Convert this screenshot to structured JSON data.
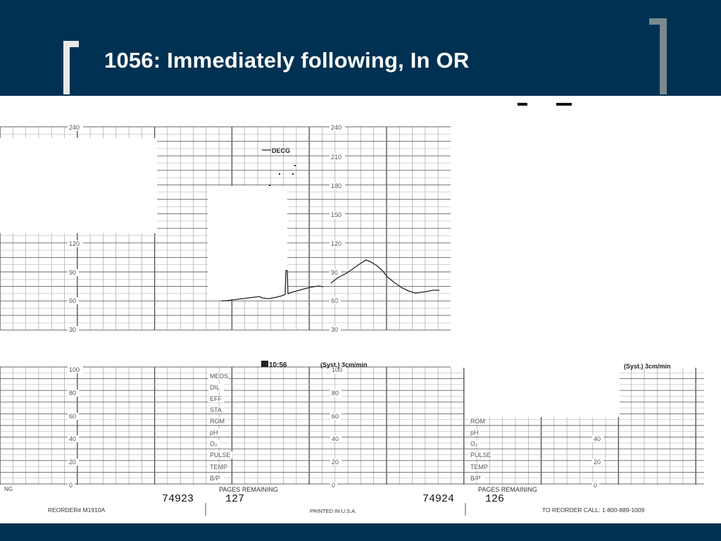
{
  "slide": {
    "title": "1056: Immediately following, In OR"
  },
  "strip": {
    "upper_scale_left": [
      "240",
      "120",
      "90",
      "60",
      "30"
    ],
    "upper_scale_mid": [
      "240",
      "210",
      "180",
      "150",
      "120",
      "90",
      "60",
      "30"
    ],
    "trace_label": "DECG",
    "time_stamp": "10:56",
    "speed_label_1": "(Syst.)  3cm/min",
    "speed_label_2": "(Syst.)  3cm/min",
    "lower_scale_left": [
      "100",
      "80",
      "60",
      "40",
      "20",
      "0"
    ],
    "lower_scale_mid": [
      "100",
      "80",
      "60",
      "40",
      "20",
      "0"
    ],
    "lower_scale_right": [
      "40",
      "20",
      "0"
    ],
    "panel_labels_1": [
      "MEDS",
      "DIL",
      "EFF",
      "STA",
      "ROM",
      "pH",
      "O₂",
      "PULSE",
      "TEMP",
      "B/P"
    ],
    "panel_labels_2": [
      "ROM",
      "pH",
      "O₂",
      "PULSE",
      "TEMP",
      "B/P"
    ],
    "footer_left_code": "NG",
    "pages_remaining_label_1": "PAGES REMAINING",
    "pages_remaining_label_2": "PAGES REMAINING",
    "serial_1": "74923",
    "pages_1": "127",
    "serial_2": "74924",
    "pages_2": "126",
    "reorder": "REORDER# M1910A",
    "printed": "PRINTED IN U.S.A.",
    "reorder_call": "TO REORDER CALL: 1-800-889-1009"
  }
}
